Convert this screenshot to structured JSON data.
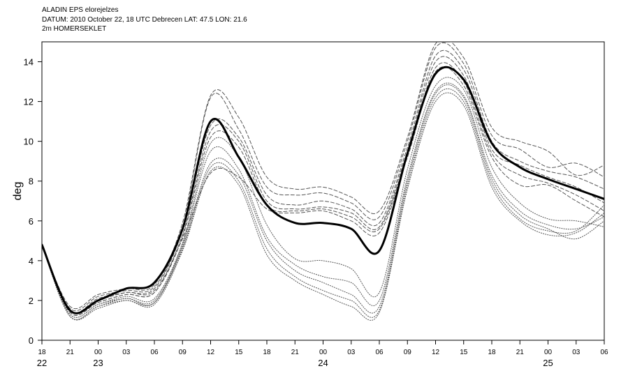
{
  "header": {
    "line1": "ALADIN EPS elorejelzes",
    "line2": "DATUM: 2010 October 22, 18 UTC Debrecen LAT: 47.5 LON: 21.6",
    "line3": "2m HOMERSEKLET"
  },
  "chart_data": {
    "type": "line",
    "title": "ALADIN EPS elorejelzes",
    "subtitle": "DATUM: 2010 October 22, 18 UTC Debrecen LAT: 47.5 LON: 21.6 — 2m HOMERSEKLET",
    "xlabel": "",
    "ylabel": "deg",
    "ylim": [
      0,
      15
    ],
    "xlim": [
      0,
      60
    ],
    "yticks": [
      0,
      2,
      4,
      6,
      8,
      10,
      12,
      14
    ],
    "x_hour_ticks": [
      "18",
      "21",
      "00",
      "03",
      "06",
      "09",
      "12",
      "15",
      "18",
      "21",
      "00",
      "03",
      "06",
      "09",
      "12",
      "15",
      "18",
      "21",
      "00",
      "03",
      "06"
    ],
    "x_day_labels": [
      {
        "x": 0,
        "label": "22"
      },
      {
        "x": 6,
        "label": "23"
      },
      {
        "x": 30,
        "label": "24"
      },
      {
        "x": 54,
        "label": "25"
      }
    ],
    "grid": false,
    "legend": "none",
    "colors": {
      "control": "#000000",
      "members": "#555555"
    },
    "x": [
      0,
      3,
      6,
      9,
      12,
      15,
      18,
      21,
      24,
      27,
      30,
      33,
      36,
      39,
      42,
      45,
      48,
      51,
      54,
      57,
      60
    ],
    "series": [
      {
        "style": "solid-bold",
        "values": [
          4.8,
          1.5,
          2.0,
          2.6,
          2.9,
          5.6,
          11.0,
          9.2,
          6.8,
          5.9,
          5.9,
          5.6,
          4.5,
          9.4,
          13.4,
          13.1,
          9.9,
          8.7,
          8.1,
          7.6,
          7.1
        ]
      },
      {
        "style": "dashed",
        "values": [
          4.8,
          1.7,
          2.3,
          2.6,
          2.8,
          5.9,
          12.3,
          11.2,
          8.2,
          7.6,
          7.7,
          7.2,
          6.5,
          10.2,
          14.9,
          14.2,
          10.7,
          10.0,
          9.5,
          8.3,
          8.8
        ]
      },
      {
        "style": "dashed",
        "values": [
          4.8,
          1.6,
          2.2,
          2.5,
          2.7,
          5.7,
          12.2,
          10.6,
          7.7,
          7.3,
          7.4,
          6.9,
          6.2,
          10.0,
          14.7,
          13.9,
          10.3,
          9.6,
          8.7,
          8.9,
          8.2
        ]
      },
      {
        "style": "dashed",
        "values": [
          4.8,
          1.5,
          2.1,
          2.4,
          2.6,
          5.5,
          10.8,
          10.2,
          7.3,
          6.8,
          7.0,
          6.6,
          5.9,
          9.7,
          14.3,
          13.6,
          10.0,
          9.0,
          8.5,
          8.2,
          7.6
        ]
      },
      {
        "style": "dashed",
        "values": [
          4.8,
          1.5,
          2.0,
          2.4,
          2.5,
          5.3,
          10.5,
          10.0,
          7.0,
          6.6,
          6.7,
          6.4,
          5.7,
          9.5,
          14.0,
          13.3,
          9.6,
          8.8,
          8.2,
          7.7,
          6.9
        ]
      },
      {
        "style": "dashed",
        "values": [
          4.8,
          1.4,
          1.9,
          2.3,
          2.4,
          5.2,
          10.2,
          9.7,
          6.8,
          6.5,
          6.6,
          6.2,
          5.6,
          9.3,
          13.7,
          13.0,
          9.4,
          8.3,
          7.9,
          7.3,
          6.5
        ]
      },
      {
        "style": "dashed",
        "values": [
          4.8,
          1.4,
          1.9,
          2.3,
          2.4,
          5.1,
          8.4,
          8.2,
          6.6,
          6.4,
          6.5,
          6.0,
          5.4,
          9.2,
          13.5,
          12.8,
          9.2,
          7.8,
          7.8,
          7.0,
          6.2
        ]
      },
      {
        "style": "dotted",
        "values": [
          4.8,
          1.3,
          1.8,
          2.2,
          2.1,
          4.9,
          9.9,
          9.2,
          5.8,
          4.1,
          4.0,
          3.6,
          2.4,
          8.6,
          12.8,
          12.6,
          8.7,
          6.9,
          6.1,
          6.0,
          5.7
        ]
      },
      {
        "style": "dotted",
        "values": [
          4.8,
          1.3,
          1.8,
          2.1,
          2.0,
          4.8,
          9.5,
          8.6,
          5.2,
          3.8,
          3.2,
          2.9,
          2.0,
          8.2,
          12.5,
          12.3,
          8.3,
          6.5,
          5.8,
          5.6,
          6.2
        ]
      },
      {
        "style": "dotted",
        "values": [
          4.8,
          1.2,
          1.7,
          2.1,
          1.9,
          4.7,
          8.9,
          8.3,
          5.0,
          3.5,
          2.9,
          2.3,
          1.7,
          8.0,
          12.4,
          12.2,
          8.1,
          6.3,
          5.6,
          5.1,
          6.0
        ]
      },
      {
        "style": "dotted",
        "values": [
          4.8,
          1.2,
          1.7,
          2.0,
          1.9,
          4.6,
          8.7,
          8.0,
          4.6,
          3.2,
          2.5,
          2.0,
          1.5,
          7.8,
          12.2,
          12.0,
          7.9,
          6.1,
          5.5,
          5.5,
          6.8
        ]
      },
      {
        "style": "dotted",
        "values": [
          4.8,
          1.2,
          1.6,
          2.0,
          1.8,
          4.5,
          8.5,
          7.8,
          4.3,
          3.0,
          2.3,
          1.7,
          1.4,
          7.6,
          12.0,
          11.8,
          7.7,
          6.0,
          5.3,
          5.4,
          6.4
        ]
      }
    ]
  }
}
